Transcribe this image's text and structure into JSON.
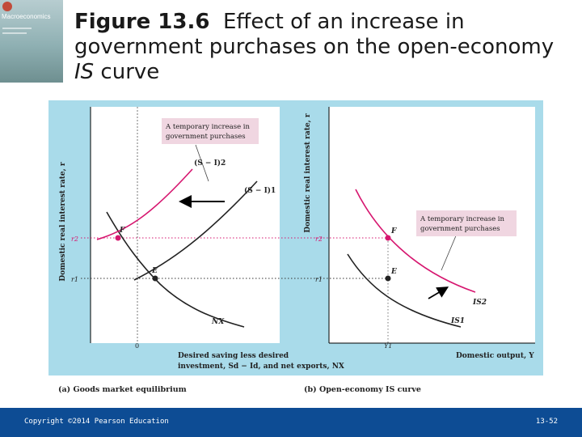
{
  "book_cover": {
    "brand": "Macroeconomics"
  },
  "title": {
    "number": "Figure 13.6",
    "text_part1": "Effect of an increase in government purchases on the open-economy ",
    "text_italic": "IS",
    "text_part2": " curve"
  },
  "figure": {
    "panel_a": {
      "y_axis": "Domestic real interest rate, r",
      "x_axis_line1": "Desired saving less desired",
      "x_axis_line2": "investment, Sd − Id, and net exports, NX",
      "zero": "0",
      "r2": "r2",
      "r1": "r1",
      "point_F": "F",
      "point_E": "E",
      "curve_SI2": "(S − I)2",
      "curve_SI1": "(S − I)1",
      "curve_NX": "NX",
      "annotation_line1": "A temporary increase in",
      "annotation_line2": "government purchases",
      "caption": "(a) Goods market equilibrium"
    },
    "panel_b": {
      "y_axis": "Domestic real interest rate, r",
      "x_axis": "Domestic output, Y",
      "y1": "Y1",
      "r2": "r2",
      "r1": "r1",
      "point_F": "F",
      "point_E": "E",
      "curve_IS2": "IS2",
      "curve_IS1": "IS1",
      "annotation_line1": "A temporary increase in",
      "annotation_line2": "government purchases",
      "caption": "(b) Open-economy IS curve"
    }
  },
  "colors": {
    "magenta": "#d6166f",
    "panel_bg": "#a9dbea",
    "footer": "#0d4c94"
  },
  "footer": {
    "copyright": "Copyright ©2014 Pearson Education",
    "page": "13-52"
  }
}
